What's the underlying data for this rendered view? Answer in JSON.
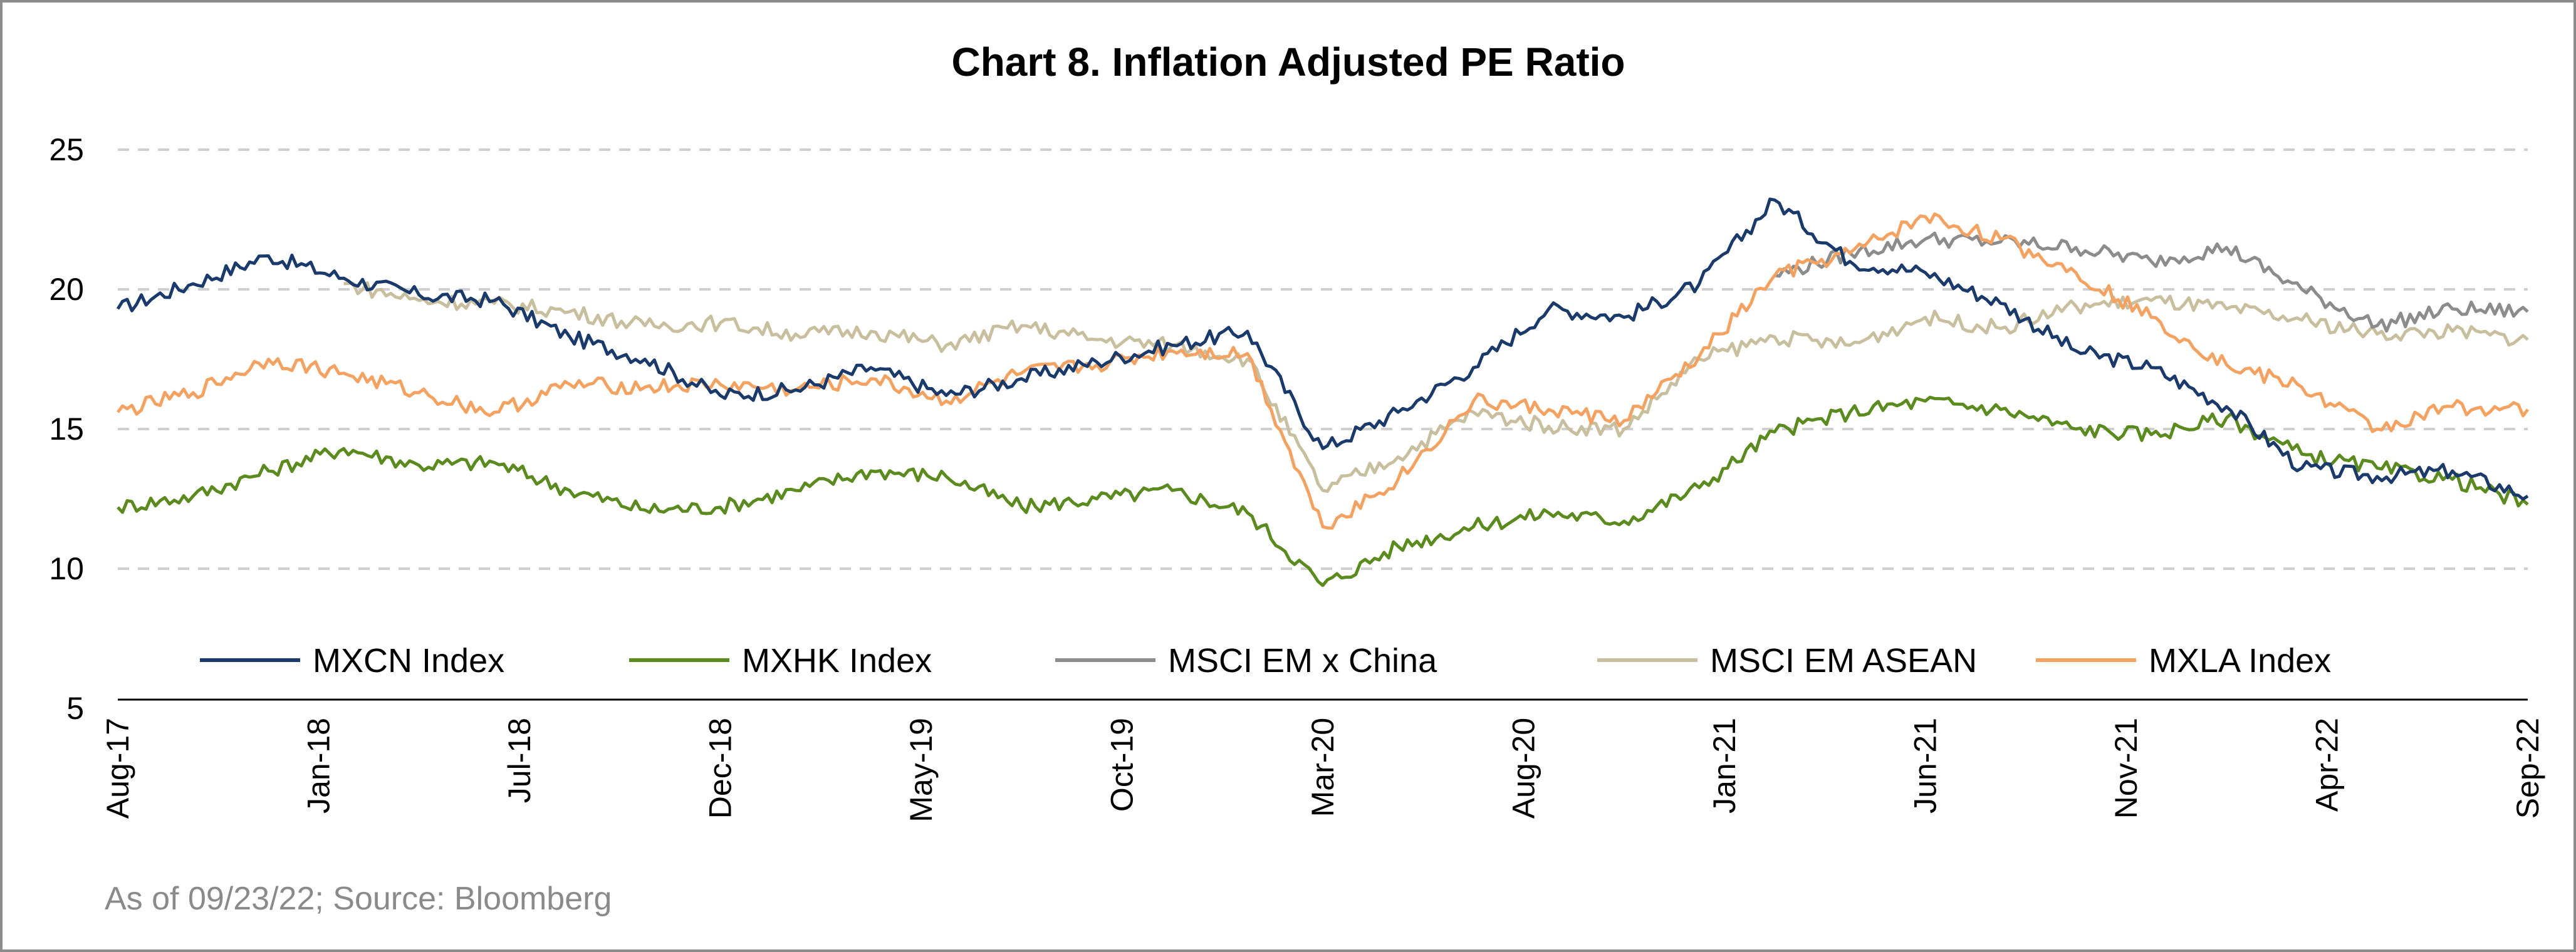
{
  "chart_data": {
    "type": "line",
    "title": "Chart 8. Inflation Adjusted PE Ratio",
    "source_note": "As of 09/23/22; Source: Bloomberg",
    "ylim": [
      5,
      25
    ],
    "yticks": [
      "25",
      "20",
      "15",
      "10",
      "5"
    ],
    "grid": "horizontal dashed",
    "legend_position": "bottom-inside",
    "x_tick_labels": [
      "Aug-17",
      "Jan-18",
      "Jul-18",
      "Dec-18",
      "May-19",
      "Oct-19",
      "Mar-20",
      "Aug-20",
      "Jan-21",
      "Jun-21",
      "Nov-21",
      "Apr-22",
      "Sep-22"
    ],
    "x": [
      "2017-08",
      "2017-10",
      "2017-12",
      "2018-02",
      "2018-04",
      "2018-06",
      "2018-08",
      "2018-10",
      "2018-12",
      "2019-02",
      "2019-04",
      "2019-06",
      "2019-08",
      "2019-10",
      "2019-12",
      "2020-02",
      "2020-03",
      "2020-04",
      "2020-06",
      "2020-08",
      "2020-10",
      "2020-12",
      "2021-02",
      "2021-04",
      "2021-06",
      "2021-08",
      "2021-10",
      "2021-12",
      "2022-02",
      "2022-04",
      "2022-06",
      "2022-08",
      "2022-09"
    ],
    "series": [
      {
        "name": "MXCN Index",
        "color": "#1a3a6b",
        "values": [
          19.3,
          20.2,
          21.2,
          20.4,
          19.8,
          19.6,
          18.3,
          17.5,
          16.2,
          16.4,
          17.2,
          16.2,
          16.8,
          17.4,
          18.0,
          18.5,
          14.3,
          15.6,
          17.2,
          19.3,
          19.0,
          20.2,
          23.2,
          21.0,
          20.6,
          19.5,
          17.8,
          17.2,
          15.8,
          13.6,
          13.3,
          13.5,
          12.6
        ]
      },
      {
        "name": "MXHK Index",
        "color": "#5b8a1e",
        "values": [
          12.2,
          12.6,
          13.5,
          14.3,
          13.7,
          13.8,
          12.8,
          12.1,
          12.2,
          12.8,
          13.5,
          13.3,
          12.2,
          12.5,
          12.8,
          12.0,
          9.4,
          10.8,
          11.5,
          12.0,
          11.7,
          12.9,
          14.9,
          15.6,
          16.0,
          15.7,
          15.0,
          14.8,
          15.4,
          14.1,
          13.6,
          13.2,
          12.3
        ]
      },
      {
        "name": "MSCI EM x China",
        "color": "#8c8c8c",
        "values": [
          null,
          null,
          null,
          null,
          null,
          null,
          null,
          null,
          null,
          null,
          null,
          null,
          null,
          null,
          null,
          null,
          null,
          null,
          null,
          null,
          null,
          null,
          20.5,
          21.3,
          21.8,
          21.7,
          21.5,
          21.0,
          21.5,
          20.0,
          18.7,
          19.3,
          19.2
        ]
      },
      {
        "name": "MSCI EM ASEAN",
        "color": "#c8bf9e",
        "values": [
          null,
          null,
          null,
          20.2,
          19.6,
          19.5,
          19.2,
          18.7,
          18.8,
          18.4,
          18.5,
          18.0,
          18.7,
          18.2,
          18.0,
          17.5,
          12.8,
          14.0,
          15.6,
          15.1,
          15.0,
          17.5,
          18.3,
          18.0,
          19.0,
          18.6,
          19.4,
          19.6,
          19.3,
          18.9,
          18.4,
          18.5,
          18.2
        ]
      },
      {
        "name": "MXLA Index",
        "color": "#f4a261",
        "values": [
          15.6,
          16.3,
          17.5,
          17.0,
          16.3,
          15.6,
          16.6,
          16.5,
          16.6,
          16.4,
          16.8,
          16.0,
          17.0,
          17.3,
          17.8,
          17.7,
          11.5,
          13.2,
          16.0,
          15.7,
          15.3,
          17.6,
          20.5,
          21.3,
          22.6,
          21.8,
          20.6,
          19.0,
          17.3,
          16.5,
          15.0,
          15.8,
          15.7
        ]
      }
    ]
  }
}
